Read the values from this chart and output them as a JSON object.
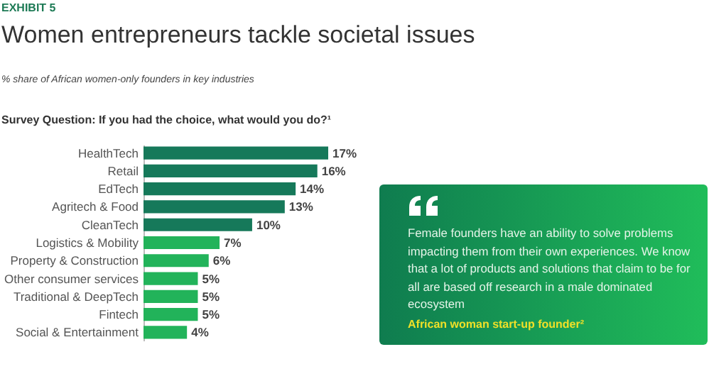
{
  "chart_data": [
    {
      "type": "bar",
      "orientation": "horizontal",
      "title": "Women entrepreneurs tackle societal issues",
      "subtitle": "% share of African women-only founders in key industries",
      "annotations": [
        "EXHIBIT 5",
        "Survey Question: If you had the choice, what would you do?¹"
      ],
      "categories": [
        "HealthTech",
        "Retail",
        "EdTech",
        "Agritech & Food",
        "CleanTech",
        "Logistics & Mobility",
        "Property & Construction",
        "Other consumer services",
        "Traditional & DeepTech",
        "Fintech",
        "Social & Entertainment"
      ],
      "values": [
        17,
        16,
        14,
        13,
        10,
        7,
        6,
        5,
        5,
        5,
        4
      ],
      "colors": [
        "#16795a",
        "#16795a",
        "#16795a",
        "#16795a",
        "#16795a",
        "#22b35a",
        "#22b35a",
        "#22b35a",
        "#22b35a",
        "#22b35a",
        "#22b35a"
      ],
      "value_labels": [
        "17%",
        "16%",
        "14%",
        "13%",
        "10%",
        "7%",
        "6%",
        "5%",
        "5%",
        "5%",
        "4%"
      ]
    },
    {
      "type": "other",
      "annotations": [
        "Female founders have an ability to solve problems impacting them from their own experiences. We know that a lot of products and solutions that claim to be for all are based off research in a male dominated ecosystem",
        "African woman start-up founder²"
      ]
    }
  ]
}
